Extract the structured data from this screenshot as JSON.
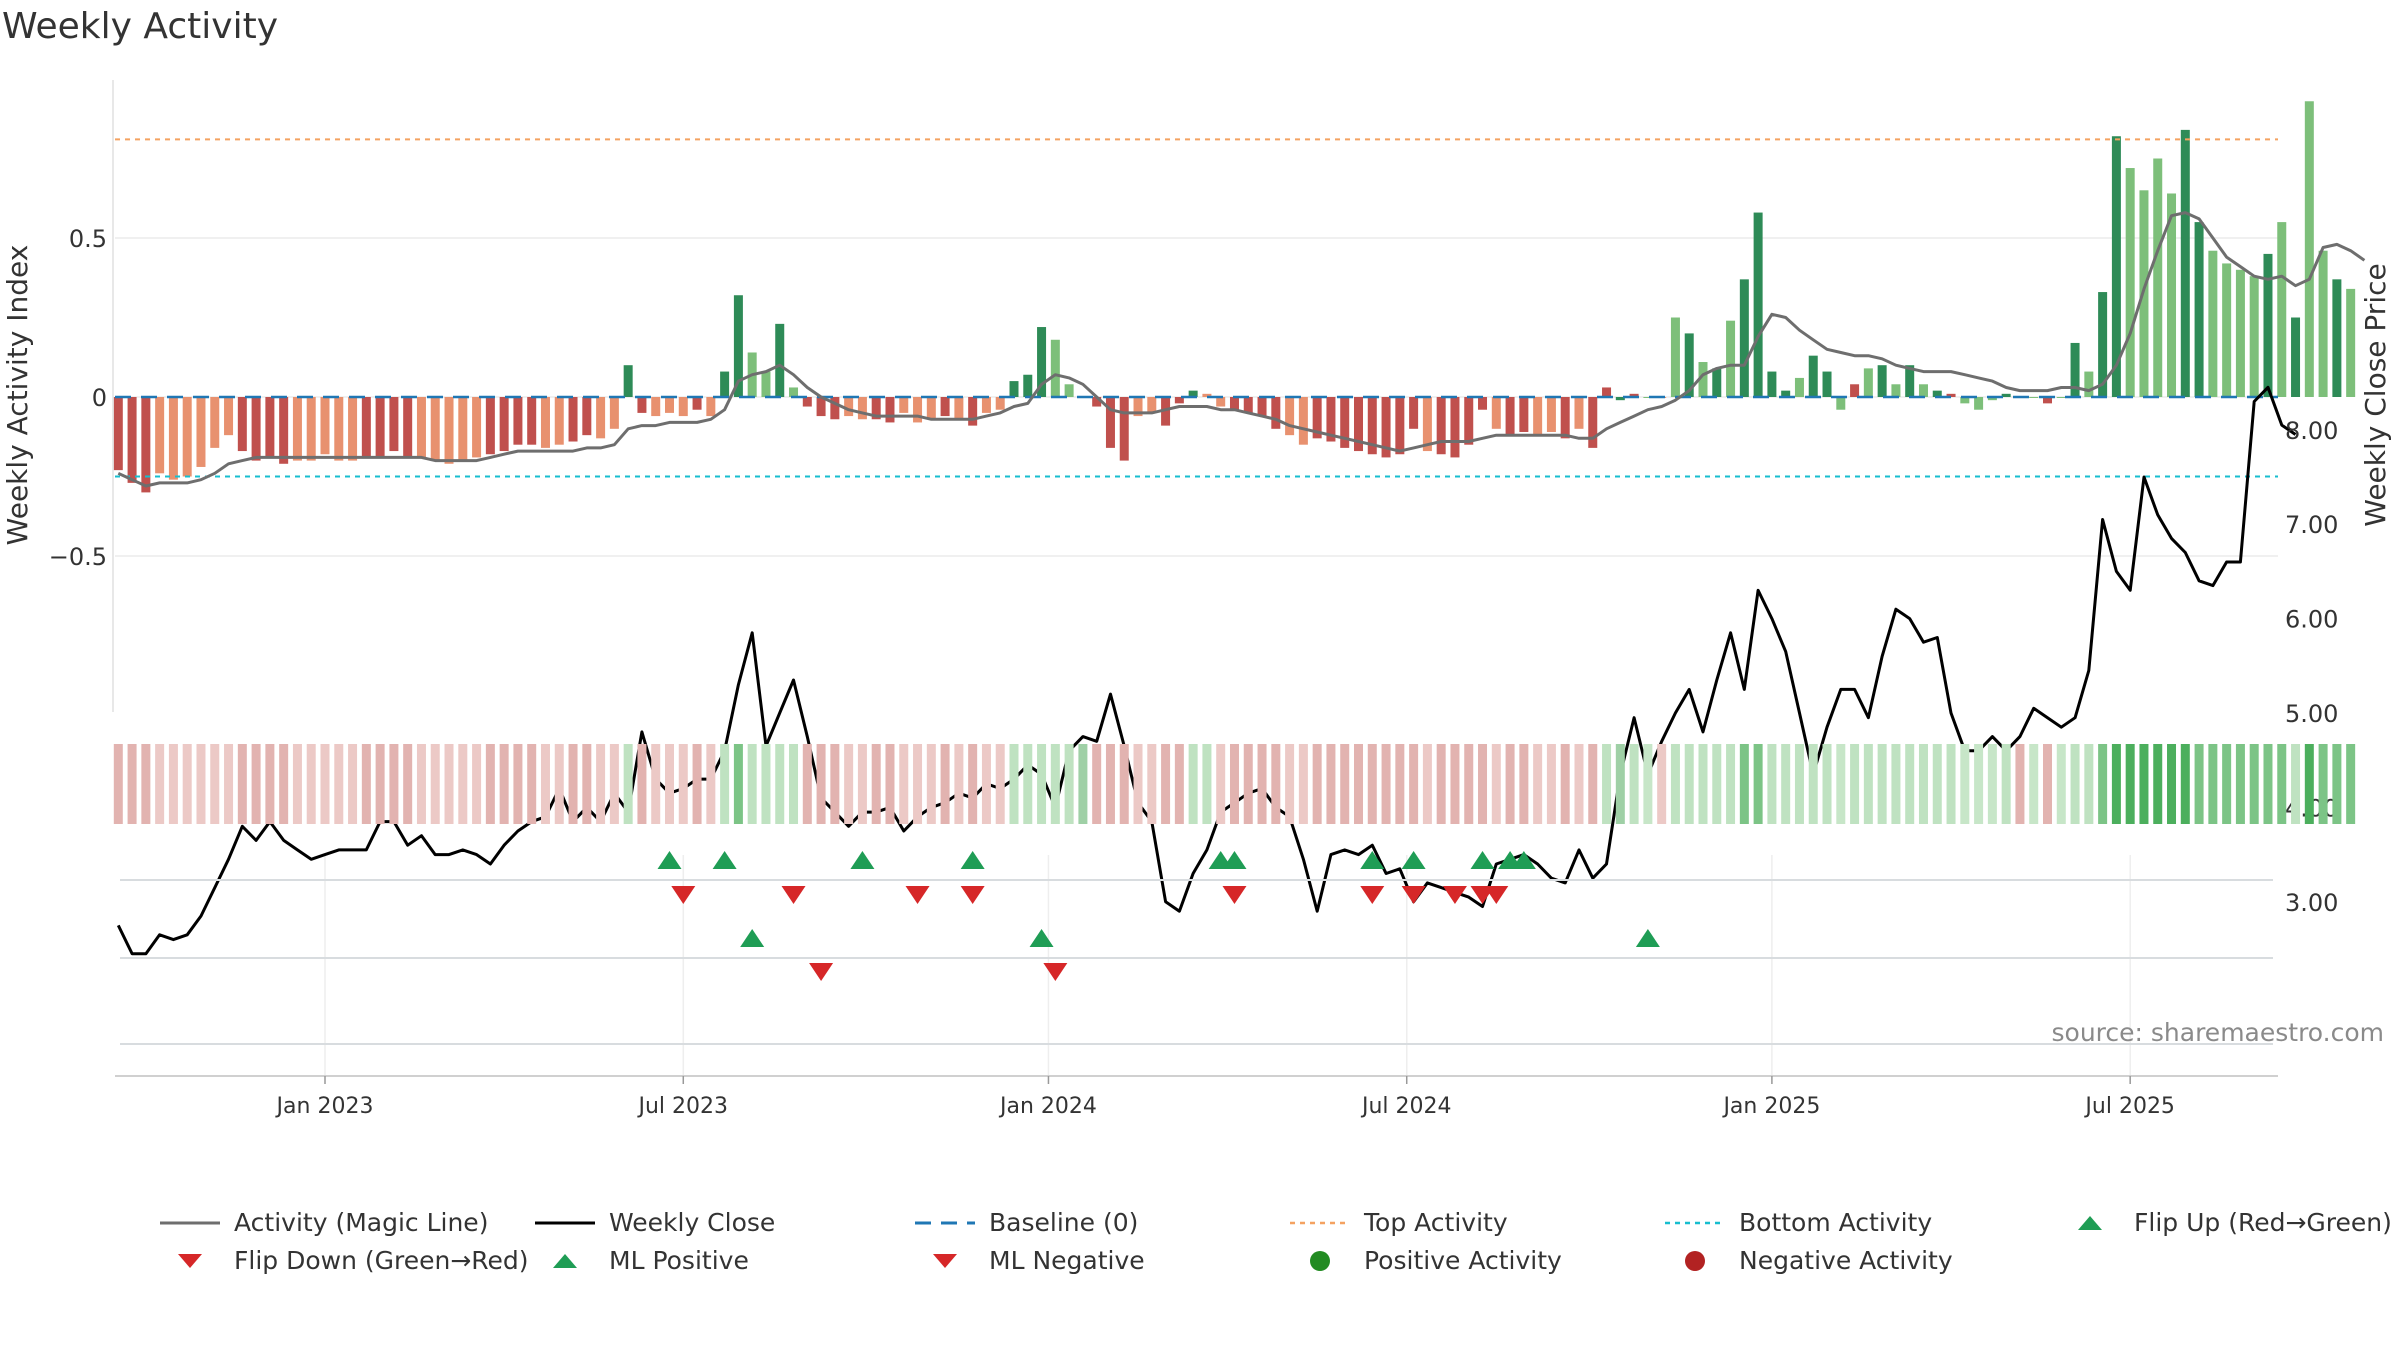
{
  "title": "Weekly Activity",
  "source": "source: sharemaestro.com",
  "colors": {
    "red_dark": "#c0504d",
    "red_light": "#e8916f",
    "green_dark": "#2e8b57",
    "green_light": "#7dbf7a",
    "magic_line": "#6e6e6e",
    "close_line": "#000000",
    "baseline": "#1f77b4",
    "top": "#f4a261",
    "bottom": "#17becf",
    "flip_up": "#1f9d55",
    "flip_down": "#d62728"
  },
  "chart_data": {
    "type": "bar",
    "title": "Weekly Activity",
    "ylabel": "Weekly Activity Index",
    "y2label": "Weekly Close Price",
    "ylim": [
      -1.0,
      1.0
    ],
    "y2lim": [
      2.2,
      9.0
    ],
    "y_ticks": [
      {
        "v": 0.5,
        "label": "0.5"
      },
      {
        "v": 0,
        "label": "0"
      },
      {
        "v": -0.5,
        "label": "−0.5"
      }
    ],
    "y2_ticks": [
      {
        "v": 8,
        "label": "8.00"
      },
      {
        "v": 7,
        "label": "7.00"
      },
      {
        "v": 6,
        "label": "6.00"
      },
      {
        "v": 5,
        "label": "5.00"
      },
      {
        "v": 4,
        "label": "4.00"
      },
      {
        "v": 3,
        "label": "3.00"
      }
    ],
    "x_ticks": [
      {
        "w": 0,
        "label": "Jan 2023"
      },
      {
        "w": 26,
        "label": "Jul 2023"
      },
      {
        "w": 52.5,
        "label": "Jan 2024"
      },
      {
        "w": 78.5,
        "label": "Jul 2024"
      },
      {
        "w": 105,
        "label": "Jan 2025"
      },
      {
        "w": 131,
        "label": "Jul 2025"
      }
    ],
    "week_start": -15,
    "top_activity": 0.81,
    "bottom_activity": -0.25,
    "baseline": 0,
    "activity": [
      -0.23,
      -0.27,
      -0.3,
      -0.24,
      -0.26,
      -0.25,
      -0.22,
      -0.16,
      -0.12,
      -0.17,
      -0.2,
      -0.19,
      -0.21,
      -0.2,
      -0.2,
      -0.18,
      -0.2,
      -0.2,
      -0.19,
      -0.19,
      -0.17,
      -0.19,
      -0.19,
      -0.2,
      -0.21,
      -0.2,
      -0.19,
      -0.18,
      -0.17,
      -0.15,
      -0.15,
      -0.16,
      -0.15,
      -0.14,
      -0.12,
      -0.13,
      -0.1,
      0.1,
      -0.05,
      -0.06,
      -0.05,
      -0.06,
      -0.04,
      -0.06,
      0.08,
      0.32,
      0.14,
      0.08,
      0.23,
      0.03,
      -0.03,
      -0.06,
      -0.07,
      -0.06,
      -0.07,
      -0.07,
      -0.08,
      -0.05,
      -0.08,
      -0.07,
      -0.06,
      -0.07,
      -0.09,
      -0.05,
      -0.04,
      0.05,
      0.07,
      0.22,
      0.18,
      0.04,
      0.0,
      -0.03,
      -0.16,
      -0.2,
      -0.06,
      -0.05,
      -0.09,
      -0.02,
      0.02,
      0.01,
      -0.03,
      -0.04,
      -0.05,
      -0.06,
      -0.1,
      -0.12,
      -0.15,
      -0.13,
      -0.14,
      -0.16,
      -0.17,
      -0.18,
      -0.19,
      -0.18,
      -0.1,
      -0.17,
      -0.18,
      -0.19,
      -0.15,
      -0.04,
      -0.1,
      -0.12,
      -0.11,
      -0.12,
      -0.11,
      -0.13,
      -0.1,
      -0.16,
      0.03,
      -0.01,
      0.01,
      0.0,
      0.0,
      0.25,
      0.2,
      0.11,
      0.09,
      0.24,
      0.37,
      0.58,
      0.08,
      0.02,
      0.06,
      0.13,
      0.08,
      -0.04,
      0.04,
      0.09,
      0.1,
      0.04,
      0.1,
      0.04,
      0.02,
      0.01,
      -0.02,
      -0.04,
      -0.01,
      0.01,
      0.0,
      0.0,
      -0.02,
      0.0,
      0.17,
      0.08,
      0.33,
      0.82,
      0.72,
      0.65,
      0.75,
      0.64,
      0.84,
      0.55,
      0.46,
      0.42,
      0.4,
      0.38,
      0.45,
      0.55,
      0.25,
      0.93,
      0.46,
      0.37,
      0.34
    ],
    "activity_colors": [
      "r",
      "r",
      "r",
      "o",
      "o",
      "o",
      "o",
      "o",
      "o",
      "r",
      "r",
      "r",
      "r",
      "o",
      "o",
      "o",
      "o",
      "o",
      "r",
      "r",
      "r",
      "r",
      "o",
      "o",
      "o",
      "o",
      "o",
      "r",
      "r",
      "r",
      "r",
      "o",
      "o",
      "r",
      "r",
      "o",
      "o",
      "g",
      "r",
      "o",
      "o",
      "o",
      "r",
      "o",
      "g",
      "g",
      "l",
      "l",
      "g",
      "l",
      "r",
      "r",
      "r",
      "o",
      "o",
      "r",
      "r",
      "o",
      "o",
      "o",
      "r",
      "o",
      "r",
      "o",
      "o",
      "g",
      "g",
      "g",
      "l",
      "l",
      "g",
      "r",
      "r",
      "r",
      "o",
      "o",
      "r",
      "r",
      "g",
      "o",
      "o",
      "r",
      "r",
      "r",
      "r",
      "o",
      "o",
      "r",
      "r",
      "r",
      "r",
      "r",
      "r",
      "r",
      "r",
      "o",
      "r",
      "r",
      "r",
      "r",
      "o",
      "r",
      "r",
      "o",
      "o",
      "r",
      "o",
      "r",
      "r",
      "g",
      "r",
      "l",
      "o",
      "l",
      "g",
      "l",
      "g",
      "l",
      "g",
      "g",
      "g",
      "g",
      "l",
      "g",
      "g",
      "l",
      "r",
      "l",
      "g",
      "l",
      "g",
      "l",
      "g",
      "r",
      "l",
      "l",
      "l",
      "g",
      "r",
      "l",
      "r",
      "l",
      "g",
      "l",
      "g",
      "g",
      "l",
      "l",
      "l",
      "l",
      "g",
      "g",
      "l",
      "l",
      "l",
      "l",
      "g",
      "l",
      "g",
      "l",
      "l",
      "g",
      "l",
      "l"
    ],
    "magic_line": [
      -0.24,
      -0.26,
      -0.28,
      -0.27,
      -0.27,
      -0.27,
      -0.26,
      -0.24,
      -0.21,
      -0.2,
      -0.19,
      -0.19,
      -0.19,
      -0.19,
      -0.19,
      -0.19,
      -0.19,
      -0.19,
      -0.19,
      -0.19,
      -0.19,
      -0.19,
      -0.19,
      -0.2,
      -0.2,
      -0.2,
      -0.2,
      -0.19,
      -0.18,
      -0.17,
      -0.17,
      -0.17,
      -0.17,
      -0.17,
      -0.16,
      -0.16,
      -0.15,
      -0.1,
      -0.09,
      -0.09,
      -0.08,
      -0.08,
      -0.08,
      -0.07,
      -0.04,
      0.05,
      0.07,
      0.08,
      0.1,
      0.07,
      0.03,
      0.0,
      -0.02,
      -0.04,
      -0.05,
      -0.06,
      -0.06,
      -0.06,
      -0.06,
      -0.07,
      -0.07,
      -0.07,
      -0.07,
      -0.06,
      -0.05,
      -0.03,
      -0.02,
      0.04,
      0.07,
      0.06,
      0.04,
      0.0,
      -0.04,
      -0.05,
      -0.05,
      -0.05,
      -0.04,
      -0.03,
      -0.03,
      -0.03,
      -0.04,
      -0.04,
      -0.05,
      -0.06,
      -0.07,
      -0.09,
      -0.1,
      -0.11,
      -0.12,
      -0.13,
      -0.14,
      -0.15,
      -0.16,
      -0.17,
      -0.16,
      -0.15,
      -0.14,
      -0.14,
      -0.14,
      -0.13,
      -0.12,
      -0.12,
      -0.12,
      -0.12,
      -0.12,
      -0.12,
      -0.13,
      -0.13,
      -0.1,
      -0.08,
      -0.06,
      -0.04,
      -0.03,
      -0.01,
      0.02,
      0.07,
      0.09,
      0.1,
      0.1,
      0.19,
      0.26,
      0.25,
      0.21,
      0.18,
      0.15,
      0.14,
      0.13,
      0.13,
      0.12,
      0.1,
      0.09,
      0.08,
      0.08,
      0.08,
      0.07,
      0.06,
      0.05,
      0.03,
      0.02,
      0.02,
      0.02,
      0.03,
      0.03,
      0.02,
      0.04,
      0.1,
      0.2,
      0.34,
      0.46,
      0.57,
      0.58,
      0.56,
      0.5,
      0.44,
      0.41,
      0.38,
      0.37,
      0.38,
      0.35,
      0.37,
      0.47,
      0.48,
      0.46,
      0.43
    ],
    "weekly_close": [
      2.75,
      2.45,
      2.45,
      2.65,
      2.6,
      2.65,
      2.85,
      3.15,
      3.45,
      3.8,
      3.65,
      3.85,
      3.65,
      3.55,
      3.45,
      3.5,
      3.55,
      3.55,
      3.55,
      3.85,
      3.85,
      3.6,
      3.7,
      3.5,
      3.5,
      3.55,
      3.5,
      3.4,
      3.6,
      3.75,
      3.85,
      3.9,
      4.2,
      3.85,
      4.0,
      3.85,
      4.15,
      3.95,
      4.8,
      4.3,
      4.15,
      4.2,
      4.3,
      4.3,
      4.6,
      5.3,
      5.85,
      4.65,
      5.0,
      5.35,
      4.75,
      4.1,
      3.95,
      3.8,
      3.95,
      3.95,
      4.0,
      3.75,
      3.9,
      4.0,
      4.05,
      4.15,
      4.1,
      4.25,
      4.2,
      4.3,
      4.45,
      4.35,
      4.0,
      4.6,
      4.75,
      4.7,
      5.2,
      4.65,
      4.05,
      3.85,
      3.0,
      2.9,
      3.3,
      3.55,
      3.95,
      4.05,
      4.15,
      4.2,
      4.0,
      3.9,
      3.45,
      2.9,
      3.5,
      3.55,
      3.5,
      3.6,
      3.3,
      3.35,
      3.0,
      3.2,
      3.15,
      3.1,
      3.05,
      2.95,
      3.4,
      3.45,
      3.5,
      3.4,
      3.25,
      3.2,
      3.55,
      3.25,
      3.4,
      4.35,
      4.95,
      4.35,
      4.7,
      5.0,
      5.25,
      4.8,
      5.35,
      5.85,
      5.25,
      6.3,
      6.0,
      5.65,
      5.0,
      4.35,
      4.85,
      5.25,
      5.25,
      4.95,
      5.6,
      6.1,
      6.0,
      5.75,
      5.8,
      5.0,
      4.6,
      4.6,
      4.75,
      4.6,
      4.75,
      5.05,
      4.95,
      4.85,
      4.95,
      5.45,
      7.05,
      6.5,
      6.3,
      7.5,
      7.1,
      6.85,
      6.7,
      6.4,
      6.35,
      6.6,
      6.6,
      8.3,
      8.45,
      8.05,
      7.95
    ],
    "flip_up_weeks": [
      25,
      29,
      39,
      47,
      65,
      66,
      76,
      79,
      84,
      86,
      87
    ],
    "flip_down_weeks": [
      26,
      34,
      43,
      47,
      66,
      76,
      79,
      82,
      84,
      85
    ],
    "ml_positive_weeks": [
      31,
      52,
      96
    ],
    "ml_negative_weeks": [
      36,
      53
    ],
    "legend": [
      {
        "key": "magic",
        "label": "Activity (Magic Line)"
      },
      {
        "key": "close",
        "label": "Weekly Close"
      },
      {
        "key": "baseline",
        "label": "Baseline (0)"
      },
      {
        "key": "top",
        "label": "Top Activity"
      },
      {
        "key": "bottom",
        "label": "Bottom Activity"
      },
      {
        "key": "flipup",
        "label": "Flip Up (Red→Green)"
      },
      {
        "key": "flipdown",
        "label": "Flip Down (Green→Red)"
      },
      {
        "key": "mlpos",
        "label": "ML Positive"
      },
      {
        "key": "mlneg",
        "label": "ML Negative"
      },
      {
        "key": "posact",
        "label": "Positive Activity"
      },
      {
        "key": "negact",
        "label": "Negative Activity"
      }
    ]
  }
}
